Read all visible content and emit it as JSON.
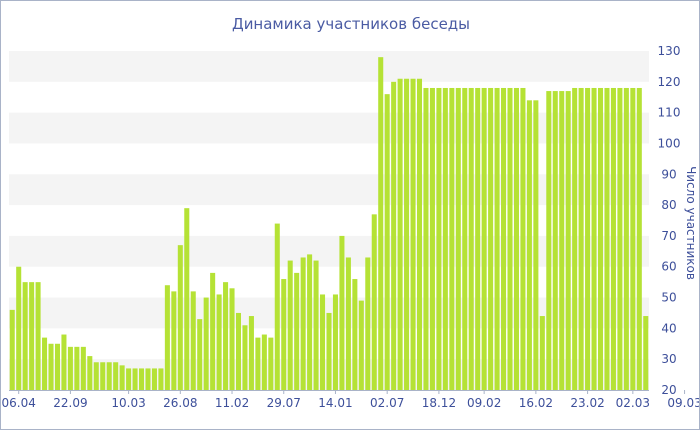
{
  "chart_data": {
    "type": "bar",
    "title": "Динамика участников беседы",
    "ylabel": "Число участников",
    "xlabel": "",
    "ylim": [
      20,
      130
    ],
    "y_ticks": [
      20,
      30,
      40,
      50,
      60,
      70,
      80,
      90,
      100,
      110,
      120,
      130
    ],
    "y_axis_position": "right",
    "grid": "alternating horizontal bands",
    "x_tick_labels": [
      {
        "label": "06.04",
        "index": 1
      },
      {
        "label": "22.09",
        "index": 9
      },
      {
        "label": "10.03",
        "index": 18
      },
      {
        "label": "26.08",
        "index": 26
      },
      {
        "label": "11.02",
        "index": 34
      },
      {
        "label": "29.07",
        "index": 42
      },
      {
        "label": "14.01",
        "index": 50
      },
      {
        "label": "02.07",
        "index": 58
      },
      {
        "label": "18.12",
        "index": 66
      },
      {
        "label": "09.02",
        "index": 73
      },
      {
        "label": "16.02",
        "index": 81
      },
      {
        "label": "23.02",
        "index": 89
      },
      {
        "label": "02.03",
        "index": 96
      },
      {
        "label": "09.03",
        "index": 104
      }
    ],
    "values": [
      46,
      60,
      55,
      55,
      55,
      37,
      35,
      35,
      38,
      34,
      34,
      34,
      31,
      29,
      29,
      29,
      29,
      28,
      27,
      27,
      27,
      27,
      27,
      27,
      54,
      52,
      67,
      79,
      52,
      43,
      50,
      58,
      51,
      55,
      53,
      45,
      41,
      44,
      37,
      38,
      37,
      74,
      56,
      62,
      58,
      63,
      64,
      62,
      51,
      45,
      51,
      70,
      63,
      56,
      49,
      63,
      77,
      128,
      116,
      120,
      121,
      121,
      121,
      121,
      118,
      118,
      118,
      118,
      118,
      118,
      118,
      118,
      118,
      118,
      118,
      118,
      118,
      118,
      118,
      118,
      114,
      114,
      44,
      117,
      117,
      117,
      117,
      118,
      118,
      118,
      118,
      118,
      118,
      118,
      118,
      118,
      118,
      118,
      44
    ],
    "color": "#b5e235"
  }
}
